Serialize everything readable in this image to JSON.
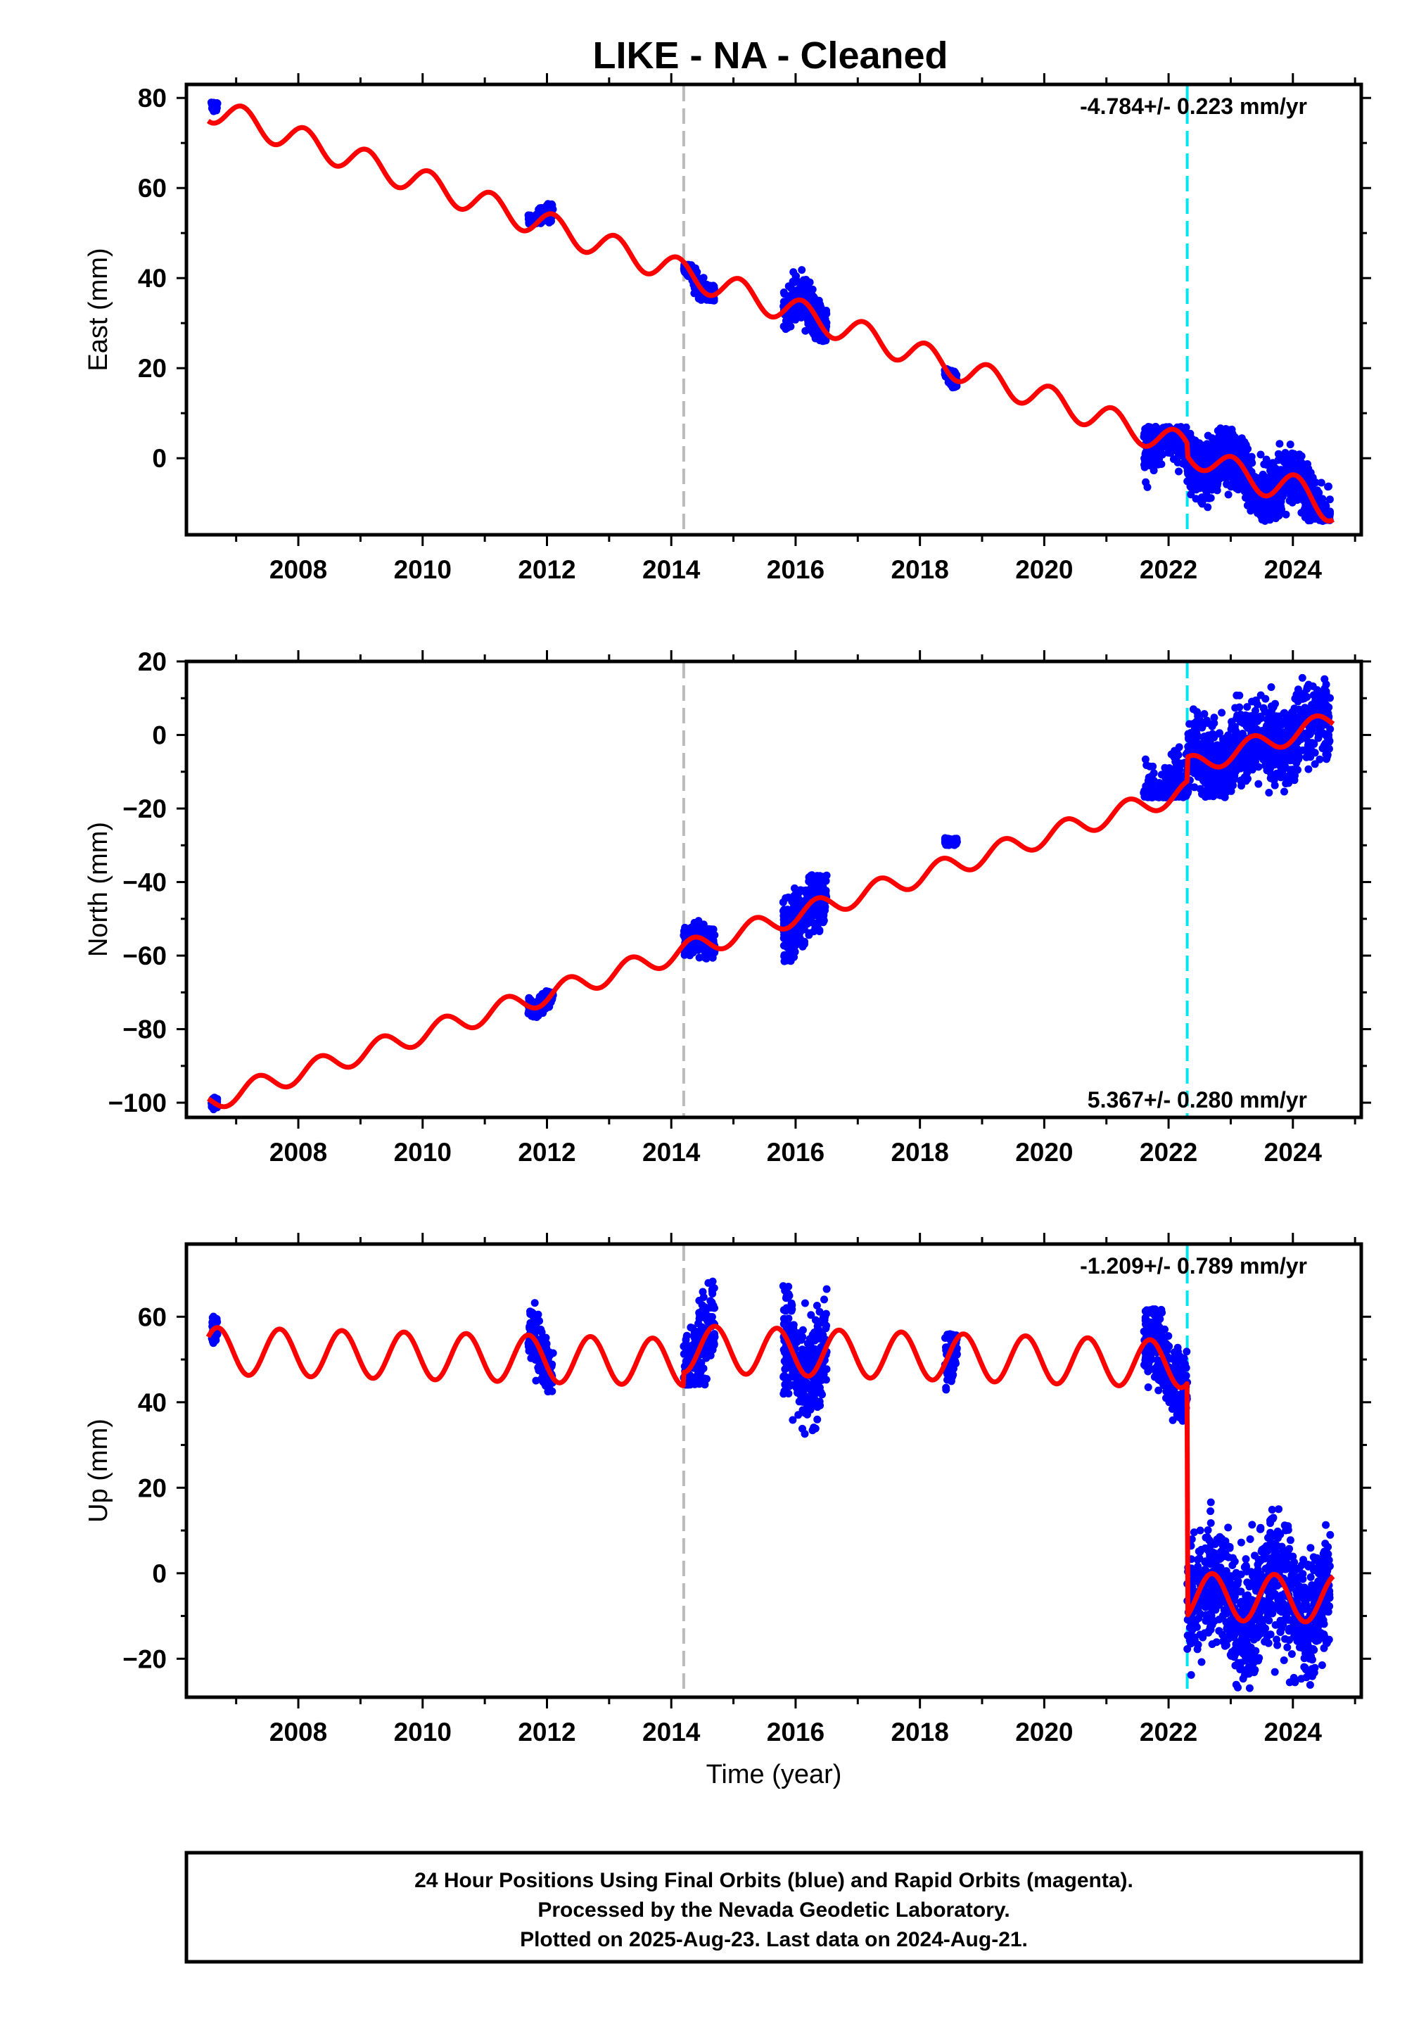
{
  "title": "LIKE  - NA - Cleaned",
  "colors": {
    "data": "#0000ff",
    "model": "#ff0000",
    "line_gray": "#bbbbbb",
    "line_cyan": "#00e5ee"
  },
  "chart_data": [
    {
      "type": "scatter",
      "component": "east",
      "ylabel": "East (mm)",
      "xlabel": "",
      "xlim": [
        2006.2,
        2025.1
      ],
      "ylim": [
        -17,
        83
      ],
      "xticks": [
        "2008",
        "2010",
        "2012",
        "2014",
        "2016",
        "2018",
        "2020",
        "2022",
        "2024"
      ],
      "yticks": [
        "80",
        "60",
        "40",
        "20",
        "0"
      ],
      "rate_label": "-4.784+/- 0.223 mm/yr",
      "rate_mm_per_yr": -4.784,
      "vertical_lines": [
        {
          "x": 2014.2,
          "color": "gray"
        },
        {
          "x": 2022.3,
          "color": "cyan"
        }
      ],
      "data_clusters": [
        {
          "x": [
            2006.6,
            2006.7
          ],
          "y": [
            77,
            81
          ]
        },
        {
          "x": [
            2011.7,
            2012.1
          ],
          "y": [
            52,
            59
          ]
        },
        {
          "x": [
            2014.2,
            2014.7
          ],
          "y": [
            35,
            43
          ]
        },
        {
          "x": [
            2015.8,
            2016.5
          ],
          "y": [
            26,
            43
          ]
        },
        {
          "x": [
            2018.4,
            2018.6
          ],
          "y": [
            15,
            20
          ]
        },
        {
          "x": [
            2021.6,
            2024.6
          ],
          "y": [
            -14,
            7
          ]
        }
      ]
    },
    {
      "type": "scatter",
      "component": "north",
      "ylabel": "North (mm)",
      "xlabel": "",
      "xlim": [
        2006.2,
        2025.1
      ],
      "ylim": [
        -104,
        20
      ],
      "xticks": [
        "2008",
        "2010",
        "2012",
        "2014",
        "2016",
        "2018",
        "2020",
        "2022",
        "2024"
      ],
      "yticks": [
        "20",
        "0",
        "−20",
        "−40",
        "−60",
        "−80",
        "−100"
      ],
      "rate_label": "5.367+/- 0.280 mm/yr",
      "rate_mm_per_yr": 5.367,
      "vertical_lines": [
        {
          "x": 2014.2,
          "color": "gray"
        },
        {
          "x": 2022.3,
          "color": "cyan"
        }
      ],
      "data_clusters": [
        {
          "x": [
            2006.6,
            2006.7
          ],
          "y": [
            -102,
            -96
          ]
        },
        {
          "x": [
            2011.7,
            2012.1
          ],
          "y": [
            -77,
            -69
          ]
        },
        {
          "x": [
            2014.2,
            2014.7
          ],
          "y": [
            -61,
            -48
          ]
        },
        {
          "x": [
            2015.8,
            2016.5
          ],
          "y": [
            -64,
            -38
          ]
        },
        {
          "x": [
            2018.4,
            2018.6
          ],
          "y": [
            -30,
            -22
          ]
        },
        {
          "x": [
            2021.6,
            2024.6
          ],
          "y": [
            -17,
            17
          ]
        }
      ]
    },
    {
      "type": "scatter",
      "component": "up",
      "ylabel": "Up (mm)",
      "xlabel": "Time (year)",
      "xlim": [
        2006.2,
        2025.1
      ],
      "ylim": [
        -29,
        77
      ],
      "xticks": [
        "2008",
        "2010",
        "2012",
        "2014",
        "2016",
        "2018",
        "2020",
        "2022",
        "2024"
      ],
      "yticks": [
        "60",
        "40",
        "20",
        "0",
        "−20"
      ],
      "rate_label": "-1.209+/- 0.789 mm/yr",
      "rate_mm_per_yr": -1.209,
      "vertical_lines": [
        {
          "x": 2014.2,
          "color": "gray"
        },
        {
          "x": 2022.3,
          "color": "cyan"
        }
      ],
      "data_clusters": [
        {
          "x": [
            2006.6,
            2006.7
          ],
          "y": [
            51,
            61
          ]
        },
        {
          "x": [
            2011.7,
            2012.1
          ],
          "y": [
            42,
            65
          ]
        },
        {
          "x": [
            2014.2,
            2014.7
          ],
          "y": [
            44,
            75
          ]
        },
        {
          "x": [
            2015.8,
            2016.5
          ],
          "y": [
            30,
            69
          ]
        },
        {
          "x": [
            2018.4,
            2018.6
          ],
          "y": [
            34,
            56
          ]
        },
        {
          "x": [
            2021.6,
            2022.3
          ],
          "y": [
            35,
            62
          ]
        },
        {
          "x": [
            2022.3,
            2024.6
          ],
          "y": [
            -27,
            20
          ]
        }
      ]
    }
  ],
  "caption": {
    "line1": "24 Hour Positions Using Final Orbits (blue) and Rapid Orbits (magenta).",
    "line2": "Processed by the Nevada Geodetic Laboratory.",
    "line3": "Plotted on 2025-Aug-23. Last data on 2024-Aug-21."
  }
}
